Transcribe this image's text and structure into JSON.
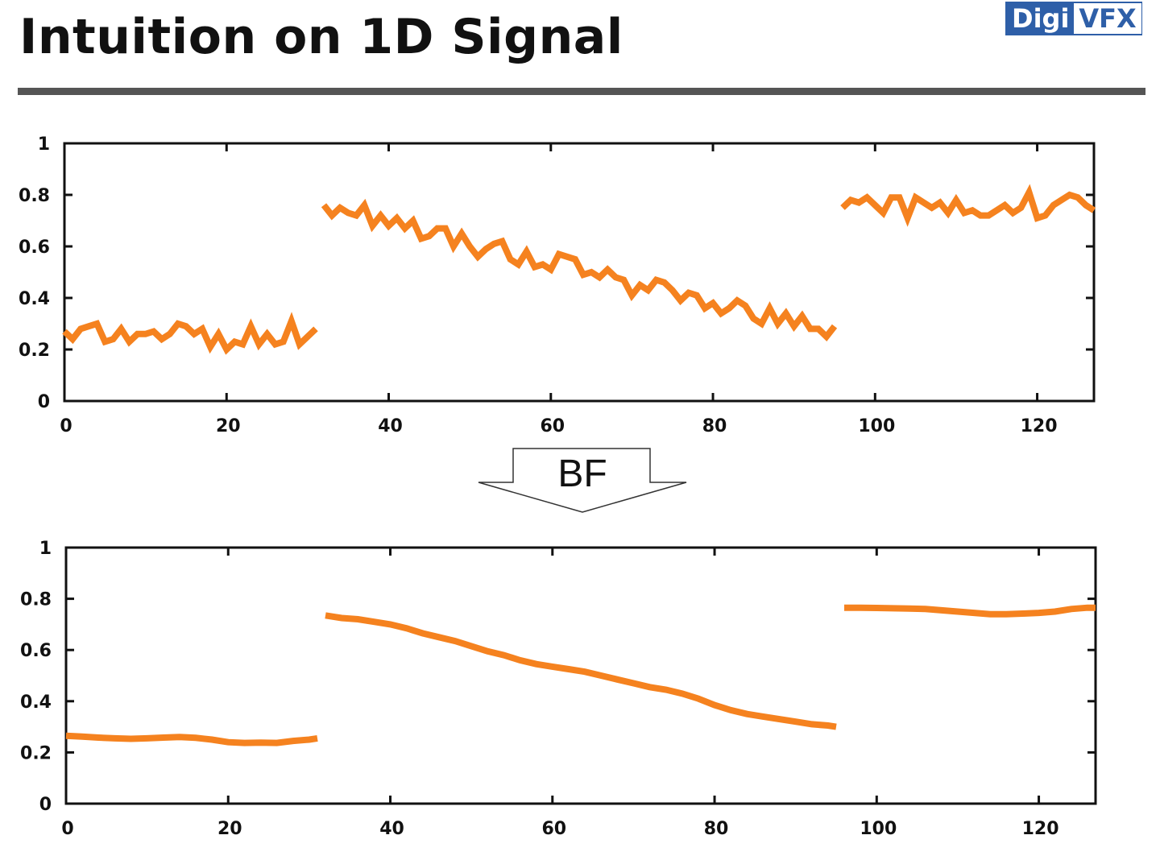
{
  "slide": {
    "title": "Intuition on 1D Signal",
    "logo": {
      "left_text": "Digi",
      "right_text": "VFX",
      "color": "#2e5fa8"
    }
  },
  "arrow": {
    "label": "BF"
  },
  "series_color": "#f5821f",
  "chart_data": [
    {
      "type": "line",
      "xlim": [
        0,
        127
      ],
      "ylim": [
        0,
        1
      ],
      "xticks": [
        0,
        20,
        40,
        60,
        80,
        100,
        120
      ],
      "yticks": [
        0,
        0.2,
        0.4,
        0.6,
        0.8,
        1
      ],
      "xtick_labels": [
        "0",
        "20",
        "40",
        "60",
        "80",
        "100",
        "120"
      ],
      "ytick_labels": [
        "0",
        "0.2",
        "0.4",
        "0.6",
        "0.8",
        "1"
      ],
      "grid": false,
      "segments": [
        {
          "x": [
            0,
            1,
            2,
            3,
            4,
            5,
            6,
            7,
            8,
            9,
            10,
            11,
            12,
            13,
            14,
            15,
            16,
            17,
            18,
            19,
            20,
            21,
            22,
            23,
            24,
            25,
            26,
            27,
            28,
            29,
            30,
            31
          ],
          "y": [
            0.27,
            0.24,
            0.28,
            0.29,
            0.3,
            0.23,
            0.24,
            0.28,
            0.23,
            0.26,
            0.26,
            0.27,
            0.24,
            0.26,
            0.3,
            0.29,
            0.26,
            0.28,
            0.21,
            0.26,
            0.2,
            0.23,
            0.22,
            0.29,
            0.22,
            0.26,
            0.22,
            0.23,
            0.31,
            0.22,
            0.25,
            0.28
          ]
        },
        {
          "x": [
            32,
            33,
            34,
            35,
            36,
            37,
            38,
            39,
            40,
            41,
            42,
            43,
            44,
            45,
            46,
            47,
            48,
            49,
            50,
            51,
            52,
            53,
            54,
            55,
            56,
            57,
            58,
            59,
            60,
            61,
            62,
            63,
            64,
            65,
            66,
            67,
            68,
            69,
            70,
            71,
            72,
            73,
            74,
            75,
            76,
            77,
            78,
            79,
            80,
            81,
            82,
            83,
            84,
            85,
            86,
            87,
            88,
            89,
            90,
            91,
            92,
            93,
            94,
            95
          ],
          "y": [
            0.76,
            0.72,
            0.75,
            0.73,
            0.72,
            0.76,
            0.68,
            0.72,
            0.68,
            0.71,
            0.67,
            0.7,
            0.63,
            0.64,
            0.67,
            0.67,
            0.6,
            0.65,
            0.6,
            0.56,
            0.59,
            0.61,
            0.62,
            0.55,
            0.53,
            0.58,
            0.52,
            0.53,
            0.51,
            0.57,
            0.56,
            0.55,
            0.49,
            0.5,
            0.48,
            0.51,
            0.48,
            0.47,
            0.41,
            0.45,
            0.43,
            0.47,
            0.46,
            0.43,
            0.39,
            0.42,
            0.41,
            0.36,
            0.38,
            0.34,
            0.36,
            0.39,
            0.37,
            0.32,
            0.3,
            0.36,
            0.3,
            0.34,
            0.29,
            0.33,
            0.28,
            0.28,
            0.25,
            0.29
          ]
        },
        {
          "x": [
            96,
            97,
            98,
            99,
            100,
            101,
            102,
            103,
            104,
            105,
            106,
            107,
            108,
            109,
            110,
            111,
            112,
            113,
            114,
            115,
            116,
            117,
            118,
            119,
            120,
            121,
            122,
            123,
            124,
            125,
            126,
            127
          ],
          "y": [
            0.75,
            0.78,
            0.77,
            0.79,
            0.76,
            0.73,
            0.79,
            0.79,
            0.71,
            0.79,
            0.77,
            0.75,
            0.77,
            0.73,
            0.78,
            0.73,
            0.74,
            0.72,
            0.72,
            0.74,
            0.76,
            0.73,
            0.75,
            0.81,
            0.71,
            0.72,
            0.76,
            0.78,
            0.8,
            0.79,
            0.76,
            0.74
          ]
        }
      ]
    },
    {
      "type": "line",
      "xlim": [
        0,
        127
      ],
      "ylim": [
        0,
        1
      ],
      "xticks": [
        0,
        20,
        40,
        60,
        80,
        100,
        120
      ],
      "yticks": [
        0,
        0.2,
        0.4,
        0.6,
        0.8,
        1
      ],
      "xtick_labels": [
        "0",
        "20",
        "40",
        "60",
        "80",
        "100",
        "120"
      ],
      "ytick_labels": [
        "0",
        "0.2",
        "0.4",
        "0.6",
        "0.8",
        "1"
      ],
      "grid": false,
      "segments": [
        {
          "x": [
            0,
            2,
            4,
            6,
            8,
            10,
            12,
            14,
            16,
            18,
            20,
            22,
            24,
            26,
            28,
            30,
            31
          ],
          "y": [
            0.265,
            0.262,
            0.258,
            0.255,
            0.253,
            0.255,
            0.258,
            0.26,
            0.257,
            0.25,
            0.24,
            0.237,
            0.238,
            0.237,
            0.245,
            0.25,
            0.255
          ]
        },
        {
          "x": [
            32,
            34,
            36,
            38,
            40,
            42,
            44,
            46,
            48,
            50,
            52,
            54,
            56,
            58,
            60,
            62,
            64,
            66,
            68,
            70,
            72,
            74,
            76,
            78,
            80,
            82,
            84,
            86,
            88,
            90,
            92,
            94,
            95
          ],
          "y": [
            0.735,
            0.725,
            0.72,
            0.71,
            0.7,
            0.685,
            0.665,
            0.65,
            0.635,
            0.615,
            0.595,
            0.58,
            0.56,
            0.545,
            0.535,
            0.525,
            0.515,
            0.5,
            0.485,
            0.47,
            0.455,
            0.445,
            0.43,
            0.41,
            0.385,
            0.365,
            0.35,
            0.34,
            0.33,
            0.32,
            0.31,
            0.305,
            0.3
          ]
        },
        {
          "x": [
            96,
            98,
            100,
            102,
            104,
            106,
            108,
            110,
            112,
            114,
            116,
            118,
            120,
            122,
            124,
            126,
            127
          ],
          "y": [
            0.765,
            0.765,
            0.764,
            0.763,
            0.762,
            0.76,
            0.755,
            0.75,
            0.745,
            0.74,
            0.74,
            0.742,
            0.745,
            0.75,
            0.76,
            0.765,
            0.765
          ]
        }
      ]
    }
  ]
}
